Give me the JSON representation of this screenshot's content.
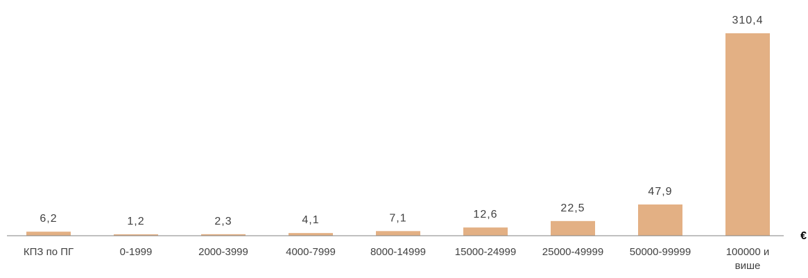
{
  "chart_data": {
    "type": "bar",
    "categories": [
      [
        "КПЗ по ПГ"
      ],
      [
        "0-1999"
      ],
      [
        "2000-3999"
      ],
      [
        "4000-7999"
      ],
      [
        "8000-14999"
      ],
      [
        "15000-24999"
      ],
      [
        "25000-49999"
      ],
      [
        "50000-99999"
      ],
      [
        "100000 и",
        "више"
      ]
    ],
    "values": [
      6.2,
      1.2,
      2.3,
      4.1,
      7.1,
      12.6,
      22.5,
      47.9,
      310.4
    ],
    "value_labels": [
      "6,2",
      "1,2",
      "2,3",
      "4,1",
      "7,1",
      "12,6",
      "22,5",
      "47,9",
      "310,4"
    ],
    "unit": "€",
    "ylim": [
      0,
      310.4
    ],
    "bar_color": "#e3b084",
    "axis_color": "#808080",
    "grid": false,
    "legend": "none"
  }
}
